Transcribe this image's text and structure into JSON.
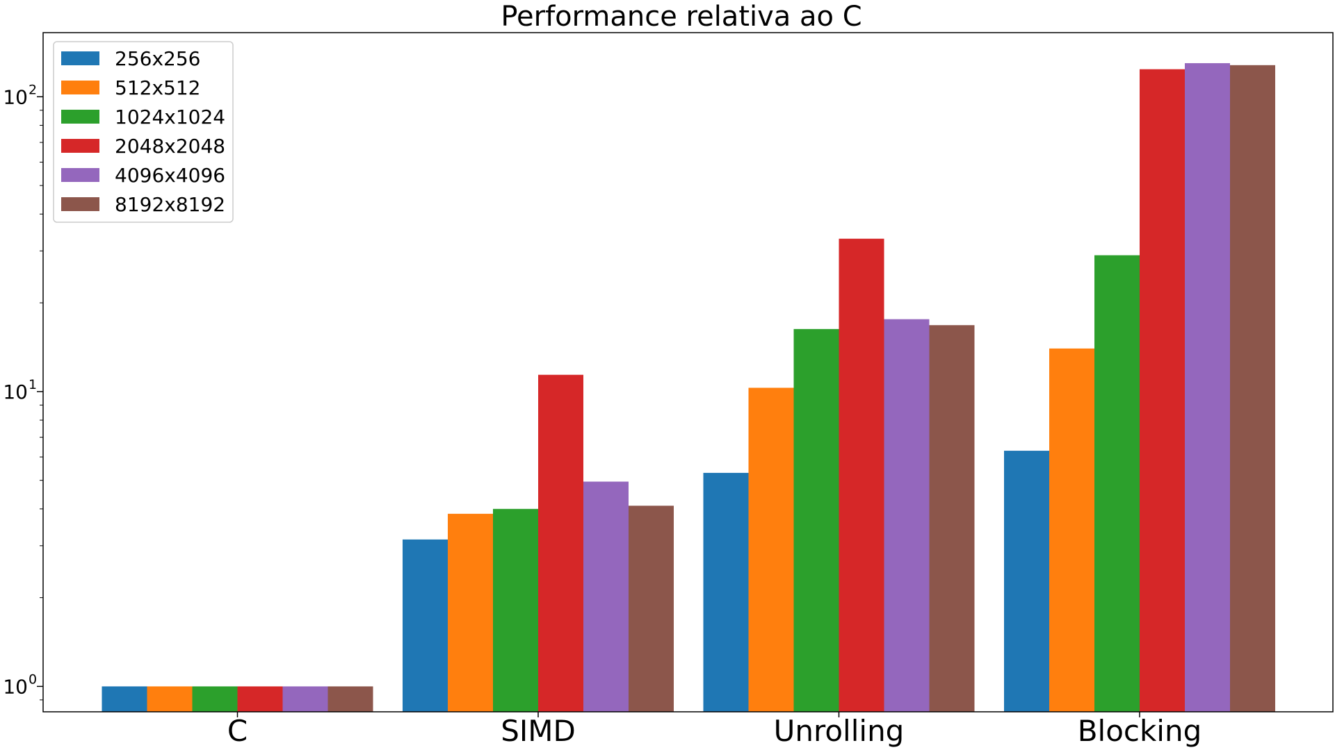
{
  "chart_data": {
    "type": "bar",
    "title": "Performance relativa ao C",
    "xlabel": "",
    "ylabel": "",
    "yscale": "log",
    "ylim": [
      0.82,
      165
    ],
    "yticks": [
      {
        "value": 1,
        "base": "10",
        "exp": "0"
      },
      {
        "value": 10,
        "base": "10",
        "exp": "1"
      },
      {
        "value": 100,
        "base": "10",
        "exp": "2"
      }
    ],
    "categories": [
      "C",
      "SIMD",
      "Unrolling",
      "Blocking"
    ],
    "legend_position": "top-left",
    "grid": false,
    "series": [
      {
        "name": "256x256",
        "color": "#1f77b4",
        "values": [
          1.0,
          3.15,
          5.3,
          6.3
        ]
      },
      {
        "name": "512x512",
        "color": "#ff7f0e",
        "values": [
          1.0,
          3.85,
          10.3,
          14.0
        ]
      },
      {
        "name": "1024x1024",
        "color": "#2ca02c",
        "values": [
          1.0,
          4.0,
          16.3,
          29.0
        ]
      },
      {
        "name": "2048x2048",
        "color": "#d62728",
        "values": [
          1.0,
          11.4,
          33.0,
          124.0
        ]
      },
      {
        "name": "4096x4096",
        "color": "#9467bd",
        "values": [
          1.0,
          4.95,
          17.6,
          130.0
        ]
      },
      {
        "name": "8192x8192",
        "color": "#8c564b",
        "values": [
          1.0,
          4.1,
          16.8,
          128.0
        ]
      }
    ]
  }
}
